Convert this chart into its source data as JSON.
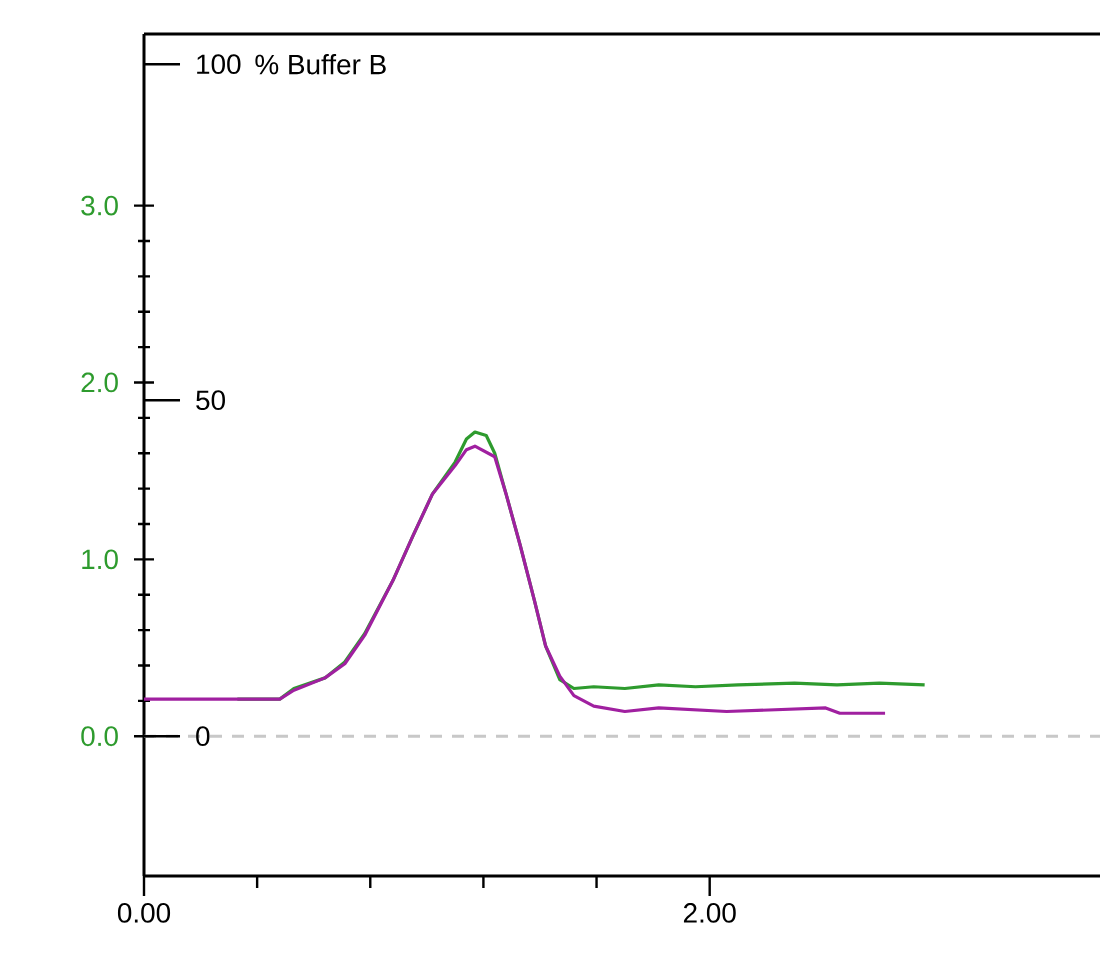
{
  "chart_data": {
    "type": "line",
    "y2label": "% Buffer B",
    "xlim": [
      0,
      3.38
    ],
    "xticks": [
      {
        "value": 0,
        "label": "0.00"
      },
      {
        "value": 2,
        "label": "2.00"
      }
    ],
    "ylim": [
      -0.79,
      3.97
    ],
    "yticks": [
      {
        "value": 0,
        "label": "0.0"
      },
      {
        "value": 1,
        "label": "1.0"
      },
      {
        "value": 2,
        "label": "2.0"
      },
      {
        "value": 3,
        "label": "3.0"
      }
    ],
    "y2lim": [
      -20.8,
      104.5
    ],
    "y2ticks": [
      {
        "value": 0,
        "label": "0"
      },
      {
        "value": 50,
        "label": "50"
      },
      {
        "value": 100,
        "label": "100"
      }
    ],
    "ref_lines": [
      {
        "axis": "y",
        "value": 0,
        "color": "#c8c8c8",
        "line_style": "dashed"
      }
    ],
    "series": [
      {
        "color": "#2e9b2e",
        "x": [
          0.33,
          0.48,
          0.53,
          0.64,
          0.71,
          0.78,
          0.88,
          0.95,
          1.02,
          1.1,
          1.14,
          1.17,
          1.21,
          1.24,
          1.28,
          1.33,
          1.38,
          1.42,
          1.47,
          1.52,
          1.59,
          1.7,
          1.82,
          1.95,
          2.1,
          2.3,
          2.45,
          2.6,
          2.76
        ],
        "values": [
          0.21,
          0.21,
          0.27,
          0.33,
          0.42,
          0.58,
          0.88,
          1.13,
          1.37,
          1.55,
          1.68,
          1.72,
          1.7,
          1.6,
          1.37,
          1.08,
          0.77,
          0.51,
          0.32,
          0.27,
          0.28,
          0.27,
          0.29,
          0.28,
          0.29,
          0.3,
          0.29,
          0.3,
          0.29
        ]
      },
      {
        "color": "#a020a0",
        "x": [
          0,
          0.48,
          0.53,
          0.64,
          0.71,
          0.78,
          0.88,
          0.95,
          1.02,
          1.1,
          1.14,
          1.17,
          1.24,
          1.28,
          1.33,
          1.38,
          1.42,
          1.47,
          1.52,
          1.59,
          1.7,
          1.82,
          2.06,
          2.41,
          2.46,
          2.62
        ],
        "values": [
          0.21,
          0.21,
          0.26,
          0.33,
          0.41,
          0.57,
          0.88,
          1.13,
          1.37,
          1.53,
          1.62,
          1.64,
          1.58,
          1.37,
          1.08,
          0.77,
          0.51,
          0.34,
          0.23,
          0.17,
          0.14,
          0.16,
          0.14,
          0.16,
          0.13,
          0.13
        ]
      }
    ]
  }
}
